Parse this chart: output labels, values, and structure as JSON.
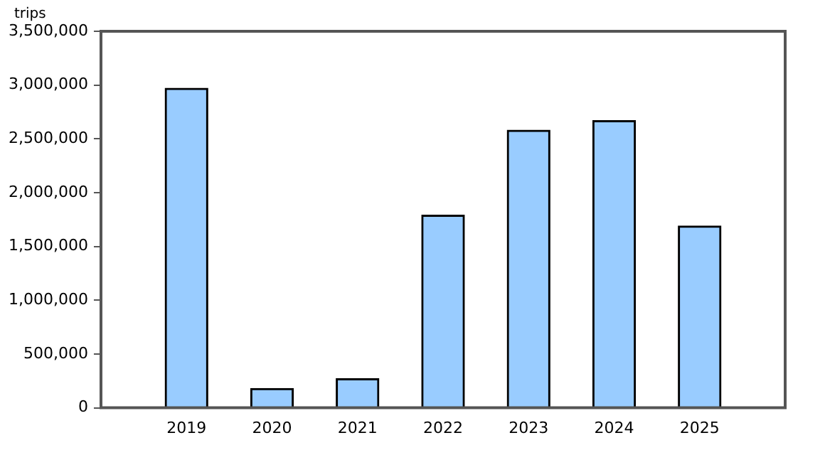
{
  "chart_data": {
    "type": "bar",
    "ylabel": "trips",
    "categories": [
      "2019",
      "2020",
      "2021",
      "2022",
      "2023",
      "2024",
      "2025"
    ],
    "values": [
      2970000,
      180000,
      270000,
      1790000,
      2580000,
      2670000,
      1690000
    ],
    "color": "#99ccff",
    "ylim": [
      0,
      3500000
    ],
    "yticks": [
      0,
      {
        "value": 500000,
        "label": "500,000"
      },
      {
        "value": 1000000,
        "label": "1,000,000"
      },
      {
        "value": 1500000,
        "label": "1,500,000"
      },
      {
        "value": 2000000,
        "label": "2,000,000"
      },
      {
        "value": 2500000,
        "label": "2,500,000"
      },
      {
        "value": 3000000,
        "label": "3,000,000"
      },
      {
        "value": 3500000,
        "label": "3,500,000"
      }
    ],
    "grid": false,
    "legend": false
  }
}
